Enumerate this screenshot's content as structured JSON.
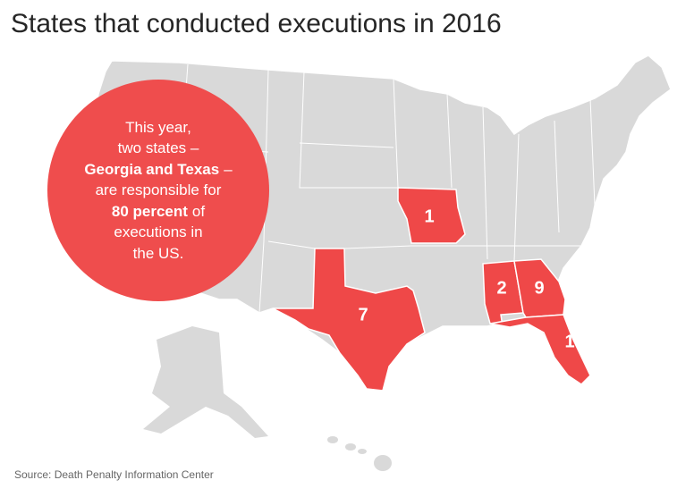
{
  "title": "States that conducted executions in 2016",
  "callout": {
    "lines": [
      "This year,",
      "two states –",
      [
        "Georgia and Texas",
        "–"
      ],
      "are responsible for",
      [
        "80 percent",
        "of"
      ],
      "executions in",
      "the US."
    ]
  },
  "map": {
    "executions": [
      1,
      7,
      2,
      9,
      1
    ]
  },
  "source": "Source: Death Penalty Information Center"
}
